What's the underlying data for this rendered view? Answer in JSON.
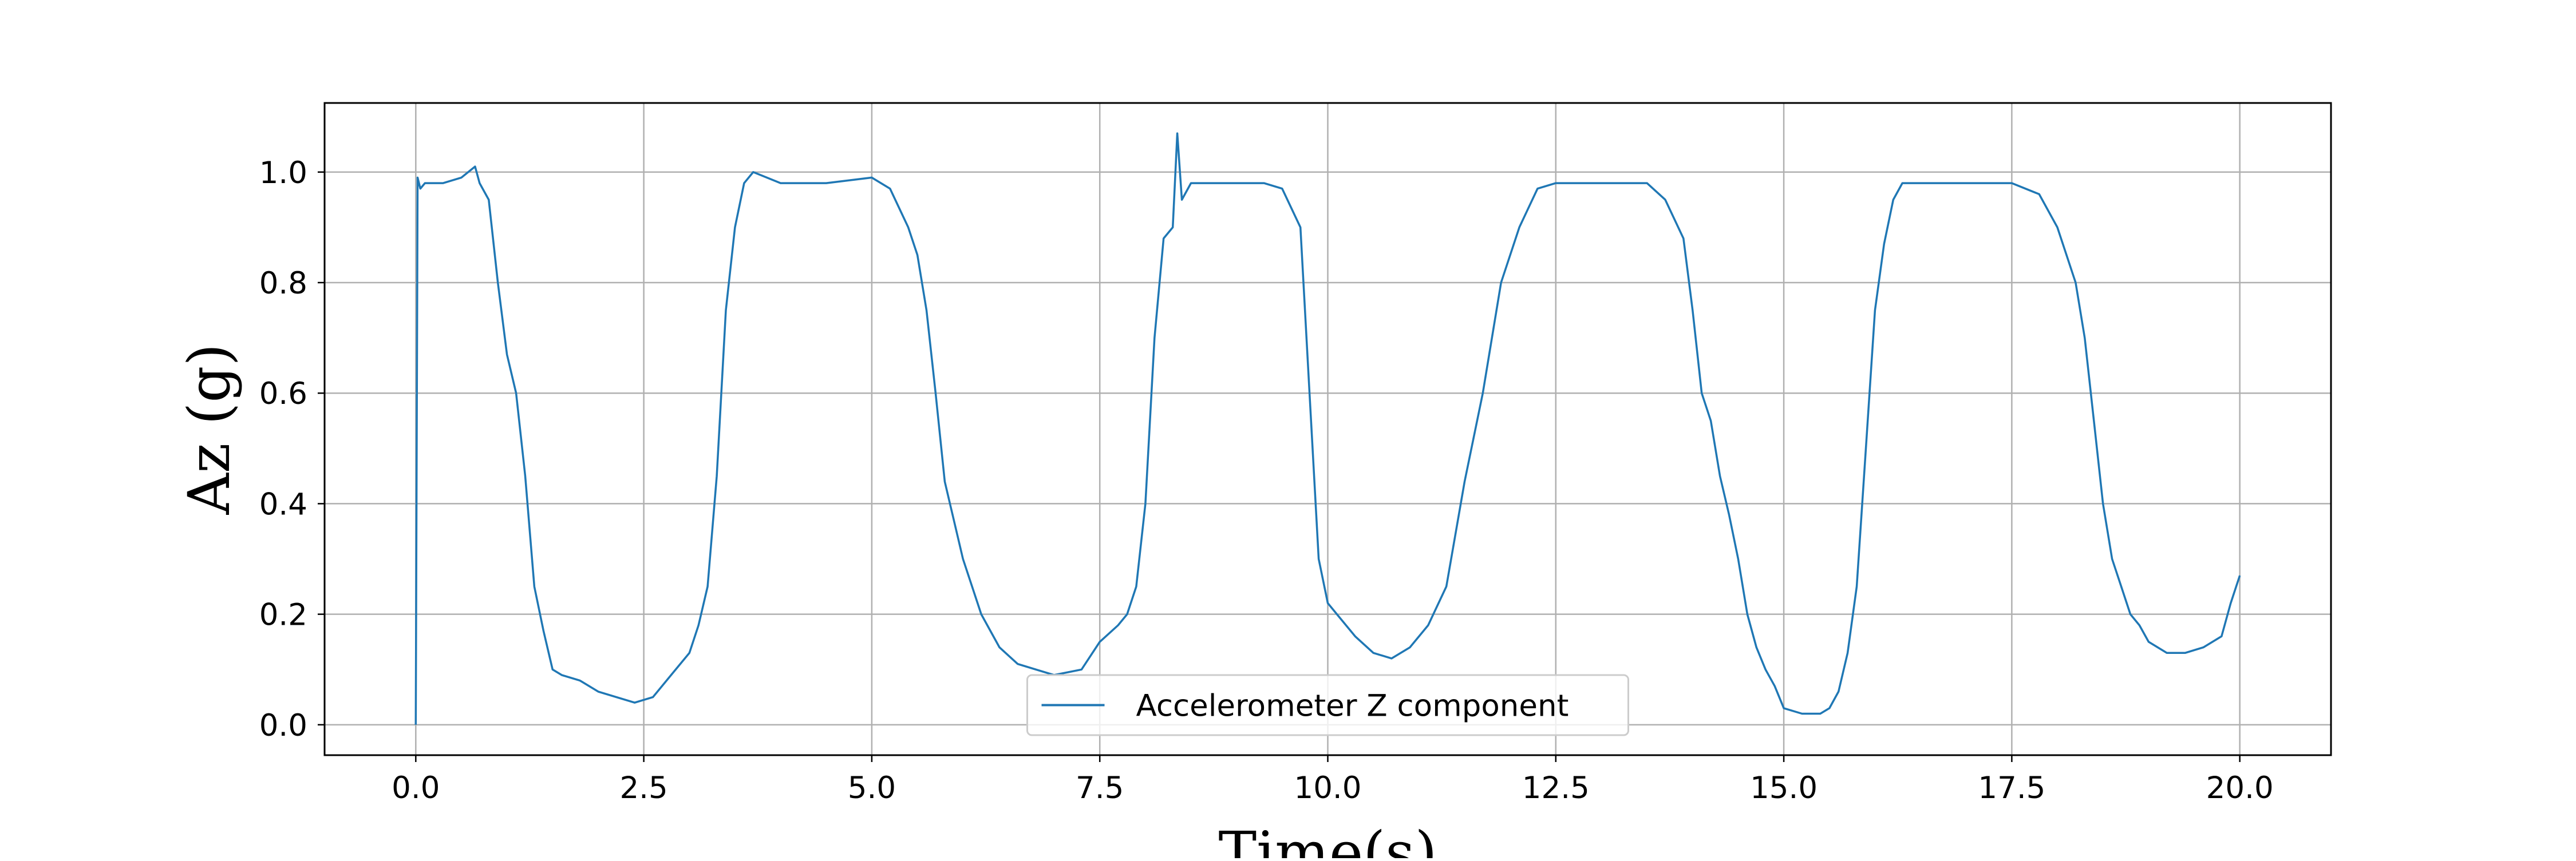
{
  "chart_data": {
    "type": "line",
    "title": "",
    "xlabel": "Time(s)",
    "ylabel": "Az (g)",
    "xlim": [
      -1.0,
      21.0
    ],
    "ylim": [
      -0.055,
      1.125
    ],
    "xticks": [
      0.0,
      2.5,
      5.0,
      7.5,
      10.0,
      12.5,
      15.0,
      17.5,
      20.0
    ],
    "xtick_labels": [
      "0.0",
      "2.5",
      "5.0",
      "7.5",
      "10.0",
      "12.5",
      "15.0",
      "17.5",
      "20.0"
    ],
    "yticks": [
      0.0,
      0.2,
      0.4,
      0.6,
      0.8,
      1.0
    ],
    "ytick_labels": [
      "0.0",
      "0.2",
      "0.4",
      "0.6",
      "0.8",
      "1.0"
    ],
    "grid": true,
    "legend_position": "bottom-center",
    "series": [
      {
        "name": "Accelerometer Z component",
        "color": "#1f77b4",
        "x": [
          0.0,
          0.02,
          0.05,
          0.1,
          0.3,
          0.5,
          0.65,
          0.7,
          0.8,
          0.9,
          1.0,
          1.1,
          1.2,
          1.3,
          1.4,
          1.5,
          1.6,
          1.8,
          2.0,
          2.2,
          2.4,
          2.6,
          2.8,
          3.0,
          3.1,
          3.2,
          3.3,
          3.4,
          3.5,
          3.6,
          3.7,
          4.0,
          4.5,
          5.0,
          5.2,
          5.4,
          5.5,
          5.6,
          5.7,
          5.8,
          5.9,
          6.0,
          6.2,
          6.4,
          6.6,
          6.8,
          7.0,
          7.3,
          7.5,
          7.7,
          7.8,
          7.9,
          8.0,
          8.1,
          8.2,
          8.3,
          8.35,
          8.4,
          8.5,
          9.0,
          9.3,
          9.5,
          9.7,
          9.8,
          9.9,
          10.0,
          10.1,
          10.3,
          10.5,
          10.7,
          10.9,
          11.1,
          11.3,
          11.5,
          11.7,
          11.9,
          12.1,
          12.3,
          12.5,
          13.0,
          13.5,
          13.7,
          13.9,
          14.0,
          14.1,
          14.2,
          14.3,
          14.4,
          14.5,
          14.6,
          14.7,
          14.8,
          14.9,
          15.0,
          15.2,
          15.4,
          15.5,
          15.6,
          15.7,
          15.8,
          15.9,
          16.0,
          16.1,
          16.2,
          16.3,
          16.5,
          17.0,
          17.5,
          17.8,
          18.0,
          18.2,
          18.3,
          18.4,
          18.5,
          18.6,
          18.7,
          18.8,
          18.9,
          19.0,
          19.2,
          19.4,
          19.6,
          19.8,
          19.9,
          20.0
        ],
        "y": [
          0.0,
          0.99,
          0.97,
          0.98,
          0.98,
          0.99,
          1.01,
          0.98,
          0.95,
          0.8,
          0.67,
          0.6,
          0.45,
          0.25,
          0.17,
          0.1,
          0.09,
          0.08,
          0.06,
          0.05,
          0.04,
          0.05,
          0.09,
          0.13,
          0.18,
          0.25,
          0.45,
          0.75,
          0.9,
          0.98,
          1.0,
          0.98,
          0.98,
          0.99,
          0.97,
          0.9,
          0.85,
          0.75,
          0.6,
          0.44,
          0.37,
          0.3,
          0.2,
          0.14,
          0.11,
          0.1,
          0.09,
          0.1,
          0.15,
          0.18,
          0.2,
          0.25,
          0.4,
          0.7,
          0.88,
          0.9,
          1.07,
          0.95,
          0.98,
          0.98,
          0.98,
          0.97,
          0.9,
          0.6,
          0.3,
          0.22,
          0.2,
          0.16,
          0.13,
          0.12,
          0.14,
          0.18,
          0.25,
          0.44,
          0.6,
          0.8,
          0.9,
          0.97,
          0.98,
          0.98,
          0.98,
          0.95,
          0.88,
          0.75,
          0.6,
          0.55,
          0.45,
          0.38,
          0.3,
          0.2,
          0.14,
          0.1,
          0.07,
          0.03,
          0.02,
          0.02,
          0.03,
          0.06,
          0.13,
          0.25,
          0.5,
          0.75,
          0.87,
          0.95,
          0.98,
          0.98,
          0.98,
          0.98,
          0.96,
          0.9,
          0.8,
          0.7,
          0.55,
          0.4,
          0.3,
          0.25,
          0.2,
          0.18,
          0.15,
          0.13,
          0.13,
          0.14,
          0.16,
          0.22,
          0.27
        ]
      }
    ]
  }
}
